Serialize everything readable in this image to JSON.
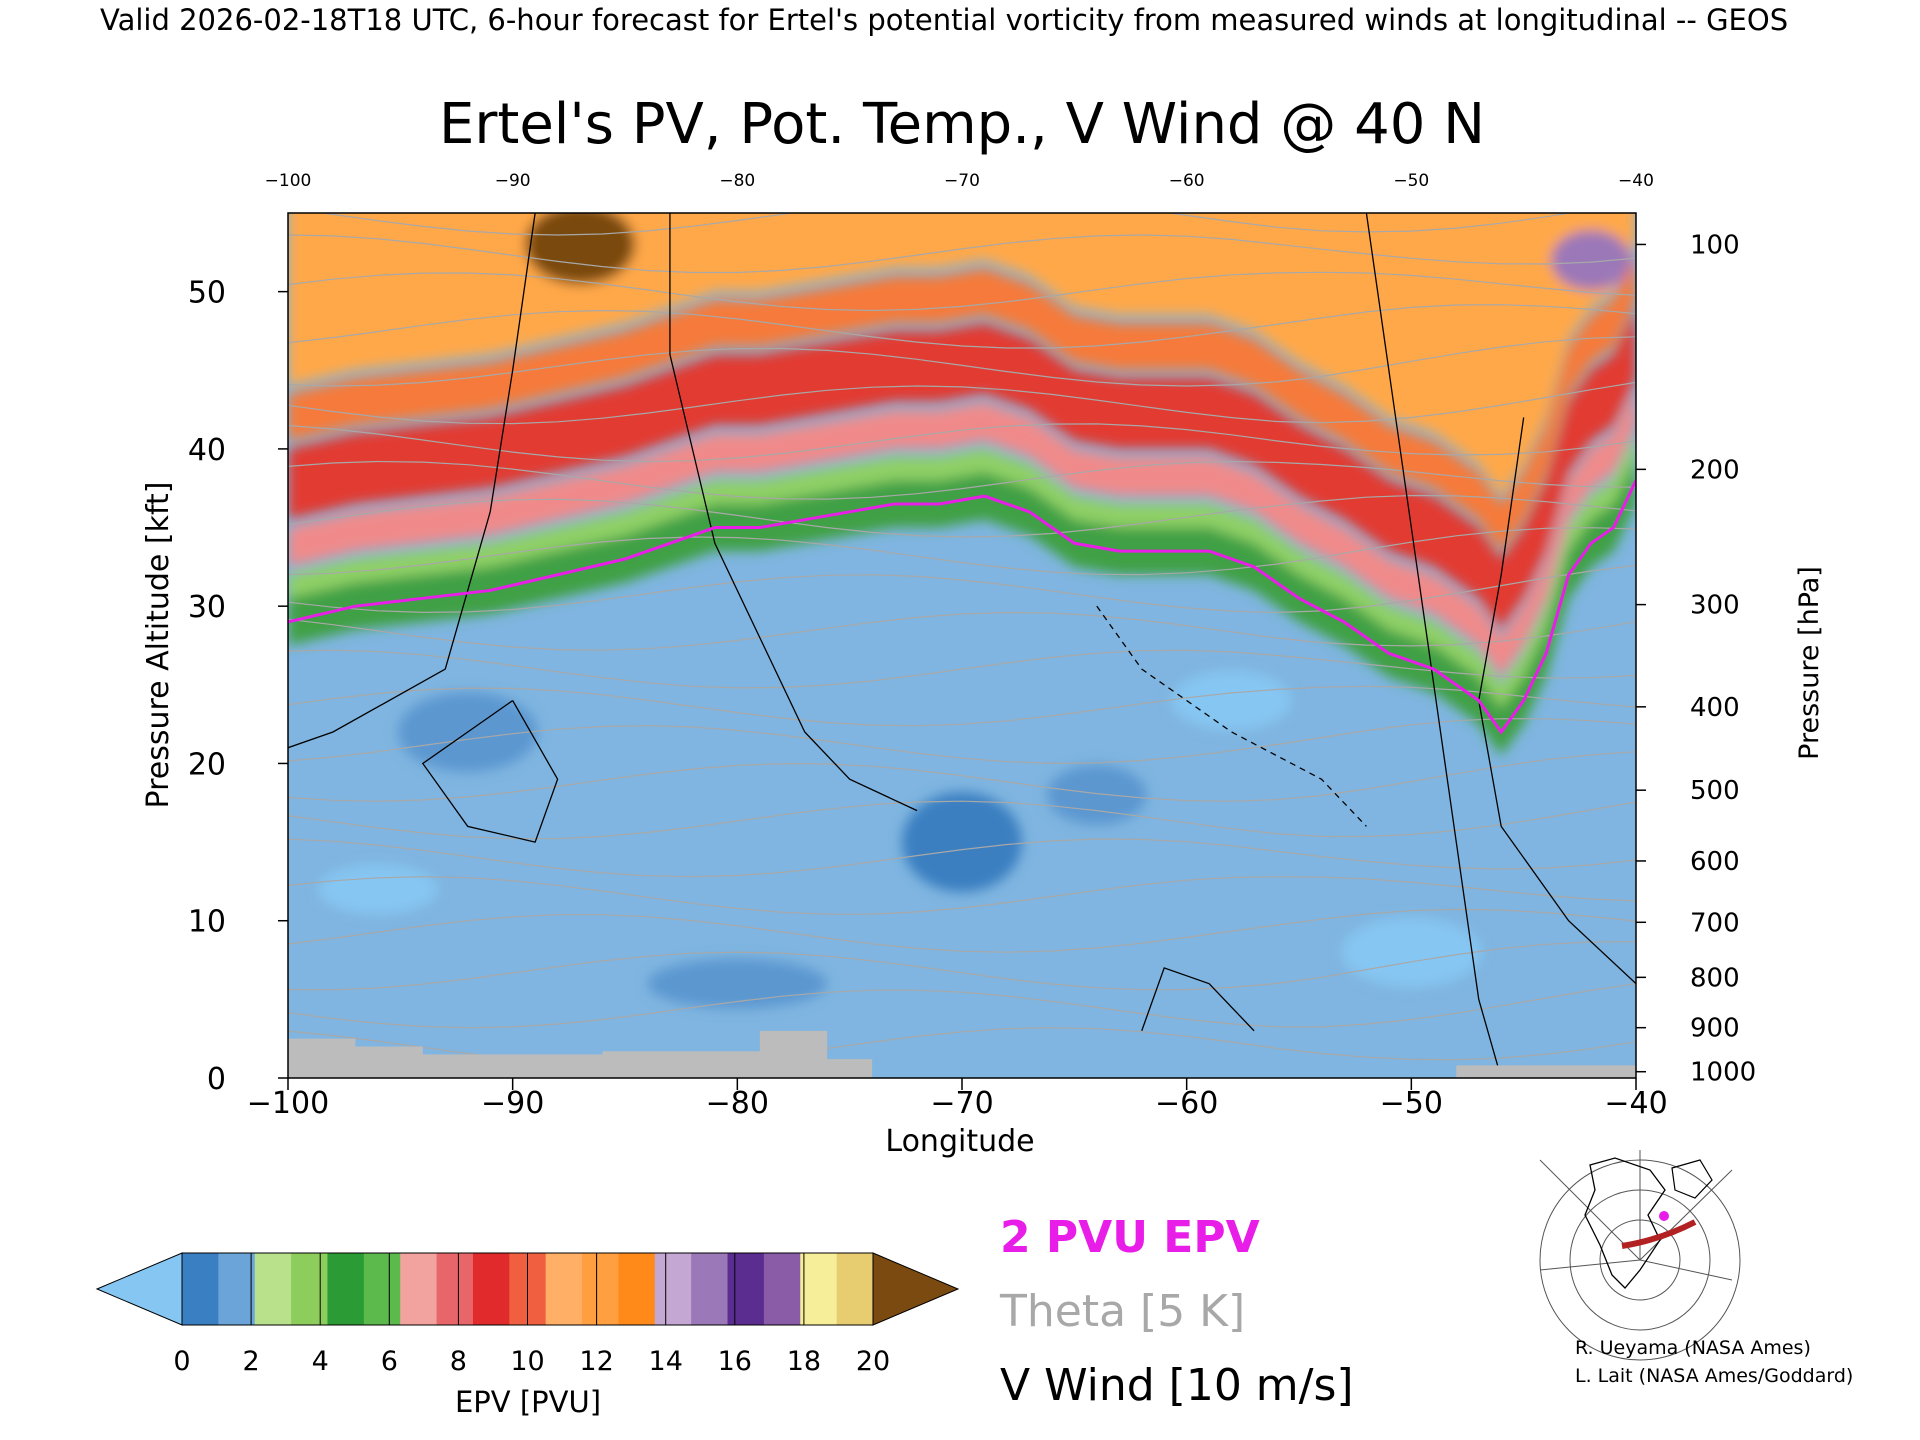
{
  "header": "Valid 2026-02-18T18 UTC, 6-hour forecast for Ertel's potential vorticity from measured winds at longitudinal -- GEOS",
  "chart_data": {
    "type": "heatmap",
    "title": "Ertel's PV, Pot. Temp., V Wind @ 40 N",
    "xlabel": "Longitude",
    "ylabel": "Pressure Altitude [kft]",
    "ylabel_right": "Pressure [hPa]",
    "xlim": [
      -100,
      -40
    ],
    "ylim": [
      0,
      55
    ],
    "x_ticks": [
      -100,
      -90,
      -80,
      -70,
      -60,
      -50,
      -40
    ],
    "x_tick_labels": [
      "−100",
      "−90",
      "−80",
      "−70",
      "−60",
      "−50",
      "−40"
    ],
    "top_tick_labels": [
      "−100",
      "−90",
      "−80",
      "−70",
      "−60",
      "−50",
      "−40"
    ],
    "y_ticks": [
      0,
      10,
      20,
      30,
      40,
      50
    ],
    "pressure_ticks": [
      {
        "label": "100",
        "kft": 53.0
      },
      {
        "label": "200",
        "kft": 38.7
      },
      {
        "label": "300",
        "kft": 30.1
      },
      {
        "label": "400",
        "kft": 23.6
      },
      {
        "label": "500",
        "kft": 18.3
      },
      {
        "label": "600",
        "kft": 13.8
      },
      {
        "label": "700",
        "kft": 9.9
      },
      {
        "label": "800",
        "kft": 6.4
      },
      {
        "label": "900",
        "kft": 3.2
      },
      {
        "label": "1000",
        "kft": 0.4
      }
    ],
    "tropopause_2pvu": [
      [
        -100,
        29
      ],
      [
        -97,
        30
      ],
      [
        -94,
        30.5
      ],
      [
        -91,
        31
      ],
      [
        -88,
        32
      ],
      [
        -85,
        33
      ],
      [
        -83,
        34
      ],
      [
        -81,
        35
      ],
      [
        -79,
        35
      ],
      [
        -77,
        35.5
      ],
      [
        -75,
        36
      ],
      [
        -73,
        36.5
      ],
      [
        -71,
        36.5
      ],
      [
        -69,
        37
      ],
      [
        -67,
        36
      ],
      [
        -65,
        34
      ],
      [
        -63,
        33.5
      ],
      [
        -61,
        33.5
      ],
      [
        -59,
        33.5
      ],
      [
        -57,
        32.5
      ],
      [
        -55,
        30.5
      ],
      [
        -53,
        29
      ],
      [
        -51,
        27
      ],
      [
        -49,
        26
      ],
      [
        -47,
        24
      ],
      [
        -46,
        22
      ],
      [
        -45,
        24
      ],
      [
        -44,
        27
      ],
      [
        -43,
        32
      ],
      [
        -42,
        34
      ],
      [
        -41,
        35
      ],
      [
        -40,
        38
      ]
    ],
    "colorbar": {
      "label": "EPV [PVU]",
      "tick_labels": [
        "0",
        "2",
        "4",
        "6",
        "8",
        "10",
        "12",
        "14",
        "16",
        "18",
        "20"
      ],
      "colors": [
        "#86c6f2",
        "#3a7fc1",
        "#6aa4d9",
        "#b9e08a",
        "#8ccd5c",
        "#2b9c35",
        "#5cb94b",
        "#f2a3a0",
        "#e8666a",
        "#e02a2c",
        "#f06040",
        "#ffb066",
        "#ff9f40",
        "#ff8a1a",
        "#c4a7d3",
        "#9b78b8",
        "#5c2d91",
        "#8a5ca8",
        "#f7ee9a",
        "#e8cc70",
        "#7a4a10"
      ]
    },
    "legend": [
      {
        "label": "2 PVU EPV",
        "color": "#e81ee8"
      },
      {
        "label": "Theta [5 K]",
        "color": "#a8a8a8"
      },
      {
        "label": "V Wind [10 m/s]",
        "color": "#000000"
      }
    ],
    "credits": [
      "R. Ueyama (NASA Ames)",
      "L. Lait (NASA Ames/Goddard)"
    ]
  }
}
